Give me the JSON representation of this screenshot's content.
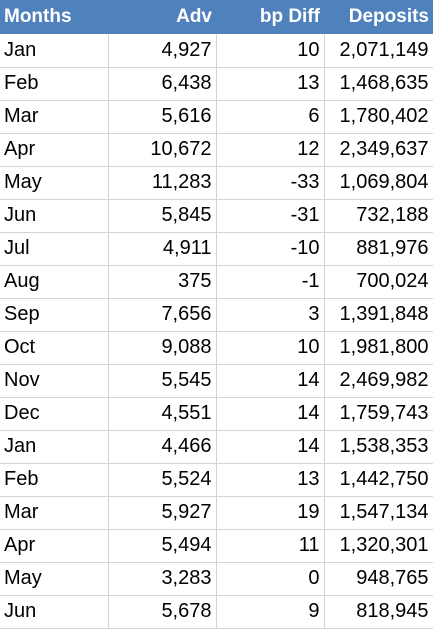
{
  "colors": {
    "header_bg": "#4f81bd",
    "header_text": "#ffffff",
    "grid": "#d4d4d4"
  },
  "headers": [
    "Months",
    "Adv",
    "bp Diff",
    "Deposits"
  ],
  "rows": [
    {
      "month": "Jan",
      "adv": "4,927",
      "bp_diff": "10",
      "deposits": "2,071,149"
    },
    {
      "month": "Feb",
      "adv": "6,438",
      "bp_diff": "13",
      "deposits": "1,468,635"
    },
    {
      "month": "Mar",
      "adv": "5,616",
      "bp_diff": "6",
      "deposits": "1,780,402"
    },
    {
      "month": "Apr",
      "adv": "10,672",
      "bp_diff": "12",
      "deposits": "2,349,637"
    },
    {
      "month": "May",
      "adv": "11,283",
      "bp_diff": "-33",
      "deposits": "1,069,804"
    },
    {
      "month": "Jun",
      "adv": "5,845",
      "bp_diff": "-31",
      "deposits": "732,188"
    },
    {
      "month": "Jul",
      "adv": "4,911",
      "bp_diff": "-10",
      "deposits": "881,976"
    },
    {
      "month": "Aug",
      "adv": "375",
      "bp_diff": "-1",
      "deposits": "700,024"
    },
    {
      "month": "Sep",
      "adv": "7,656",
      "bp_diff": "3",
      "deposits": "1,391,848"
    },
    {
      "month": "Oct",
      "adv": "9,088",
      "bp_diff": "10",
      "deposits": "1,981,800"
    },
    {
      "month": "Nov",
      "adv": "5,545",
      "bp_diff": "14",
      "deposits": "2,469,982"
    },
    {
      "month": "Dec",
      "adv": "4,551",
      "bp_diff": "14",
      "deposits": "1,759,743"
    },
    {
      "month": "Jan",
      "adv": "4,466",
      "bp_diff": "14",
      "deposits": "1,538,353"
    },
    {
      "month": "Feb",
      "adv": "5,524",
      "bp_diff": "13",
      "deposits": "1,442,750"
    },
    {
      "month": "Mar",
      "adv": "5,927",
      "bp_diff": "19",
      "deposits": "1,547,134"
    },
    {
      "month": "Apr",
      "adv": "5,494",
      "bp_diff": "11",
      "deposits": "1,320,301"
    },
    {
      "month": "May",
      "adv": "3,283",
      "bp_diff": "0",
      "deposits": "948,765"
    },
    {
      "month": "Jun",
      "adv": "5,678",
      "bp_diff": "9",
      "deposits": "818,945"
    }
  ]
}
